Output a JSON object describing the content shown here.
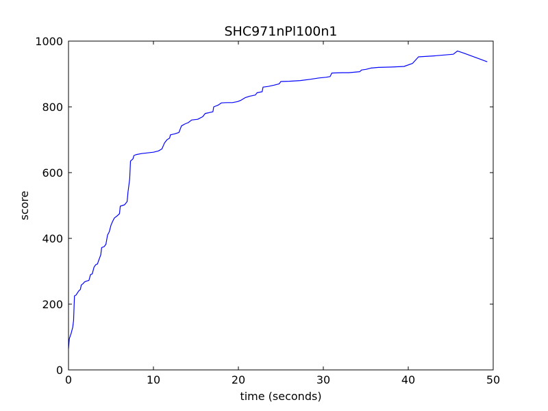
{
  "chart_data": {
    "type": "line",
    "title": "SHC971nPl100n1",
    "xlabel": "time (seconds)",
    "ylabel": "score",
    "xlim": [
      0,
      50
    ],
    "ylim": [
      0,
      1000
    ],
    "x_ticks": [
      0,
      10,
      20,
      30,
      40,
      50
    ],
    "y_ticks": [
      0,
      200,
      400,
      600,
      800,
      1000
    ],
    "x_tick_labels": [
      "0",
      "10",
      "20",
      "30",
      "40",
      "50"
    ],
    "y_tick_labels": [
      "0",
      "200",
      "400",
      "600",
      "800",
      "1000"
    ],
    "grid": false,
    "series_color": "#0000ff",
    "series": [
      {
        "points": [
          [
            0.0,
            65
          ],
          [
            0.1,
            95
          ],
          [
            0.3,
            110
          ],
          [
            0.5,
            130
          ],
          [
            0.6,
            150
          ],
          [
            0.7,
            225
          ],
          [
            0.9,
            228
          ],
          [
            1.0,
            232
          ],
          [
            1.2,
            240
          ],
          [
            1.4,
            245
          ],
          [
            1.5,
            258
          ],
          [
            1.7,
            262
          ],
          [
            1.9,
            268
          ],
          [
            2.1,
            270
          ],
          [
            2.4,
            272
          ],
          [
            2.6,
            290
          ],
          [
            2.8,
            292
          ],
          [
            3.0,
            312
          ],
          [
            3.2,
            320
          ],
          [
            3.4,
            322
          ],
          [
            3.6,
            336
          ],
          [
            3.8,
            350
          ],
          [
            3.9,
            372
          ],
          [
            4.2,
            375
          ],
          [
            4.4,
            382
          ],
          [
            4.6,
            410
          ],
          [
            4.8,
            420
          ],
          [
            5.0,
            440
          ],
          [
            5.2,
            452
          ],
          [
            5.4,
            462
          ],
          [
            5.7,
            468
          ],
          [
            6.0,
            475
          ],
          [
            6.1,
            498
          ],
          [
            6.6,
            502
          ],
          [
            6.9,
            512
          ],
          [
            7.0,
            540
          ],
          [
            7.2,
            580
          ],
          [
            7.3,
            635
          ],
          [
            7.6,
            642
          ],
          [
            7.7,
            652
          ],
          [
            8.0,
            655
          ],
          [
            8.6,
            658
          ],
          [
            9.3,
            660
          ],
          [
            10.0,
            662
          ],
          [
            10.6,
            666
          ],
          [
            11.0,
            672
          ],
          [
            11.3,
            690
          ],
          [
            11.6,
            700
          ],
          [
            11.9,
            705
          ],
          [
            12.0,
            715
          ],
          [
            12.5,
            718
          ],
          [
            13.0,
            722
          ],
          [
            13.3,
            742
          ],
          [
            13.7,
            748
          ],
          [
            14.1,
            752
          ],
          [
            14.5,
            760
          ],
          [
            15.2,
            762
          ],
          [
            15.8,
            770
          ],
          [
            16.1,
            780
          ],
          [
            16.5,
            782
          ],
          [
            17.0,
            785
          ],
          [
            17.1,
            800
          ],
          [
            17.6,
            805
          ],
          [
            18.0,
            812
          ],
          [
            18.6,
            813
          ],
          [
            19.3,
            813
          ],
          [
            19.9,
            816
          ],
          [
            20.3,
            820
          ],
          [
            20.8,
            828
          ],
          [
            21.3,
            832
          ],
          [
            22.0,
            836
          ],
          [
            22.2,
            843
          ],
          [
            22.8,
            846
          ],
          [
            22.9,
            860
          ],
          [
            23.5,
            862
          ],
          [
            24.2,
            866
          ],
          [
            24.8,
            870
          ],
          [
            25.0,
            877
          ],
          [
            26.0,
            878
          ],
          [
            27.3,
            880
          ],
          [
            28.5,
            884
          ],
          [
            29.5,
            888
          ],
          [
            30.3,
            890
          ],
          [
            30.8,
            892
          ],
          [
            31.0,
            903
          ],
          [
            32.2,
            904
          ],
          [
            33.0,
            904
          ],
          [
            34.3,
            907
          ],
          [
            34.5,
            912
          ],
          [
            35.0,
            914
          ],
          [
            35.6,
            918
          ],
          [
            36.5,
            920
          ],
          [
            38.0,
            921
          ],
          [
            39.5,
            923
          ],
          [
            40.5,
            932
          ],
          [
            41.2,
            952
          ],
          [
            43.0,
            955
          ],
          [
            45.3,
            960
          ],
          [
            45.8,
            970
          ],
          [
            46.6,
            963
          ],
          [
            49.3,
            937
          ]
        ]
      }
    ]
  }
}
